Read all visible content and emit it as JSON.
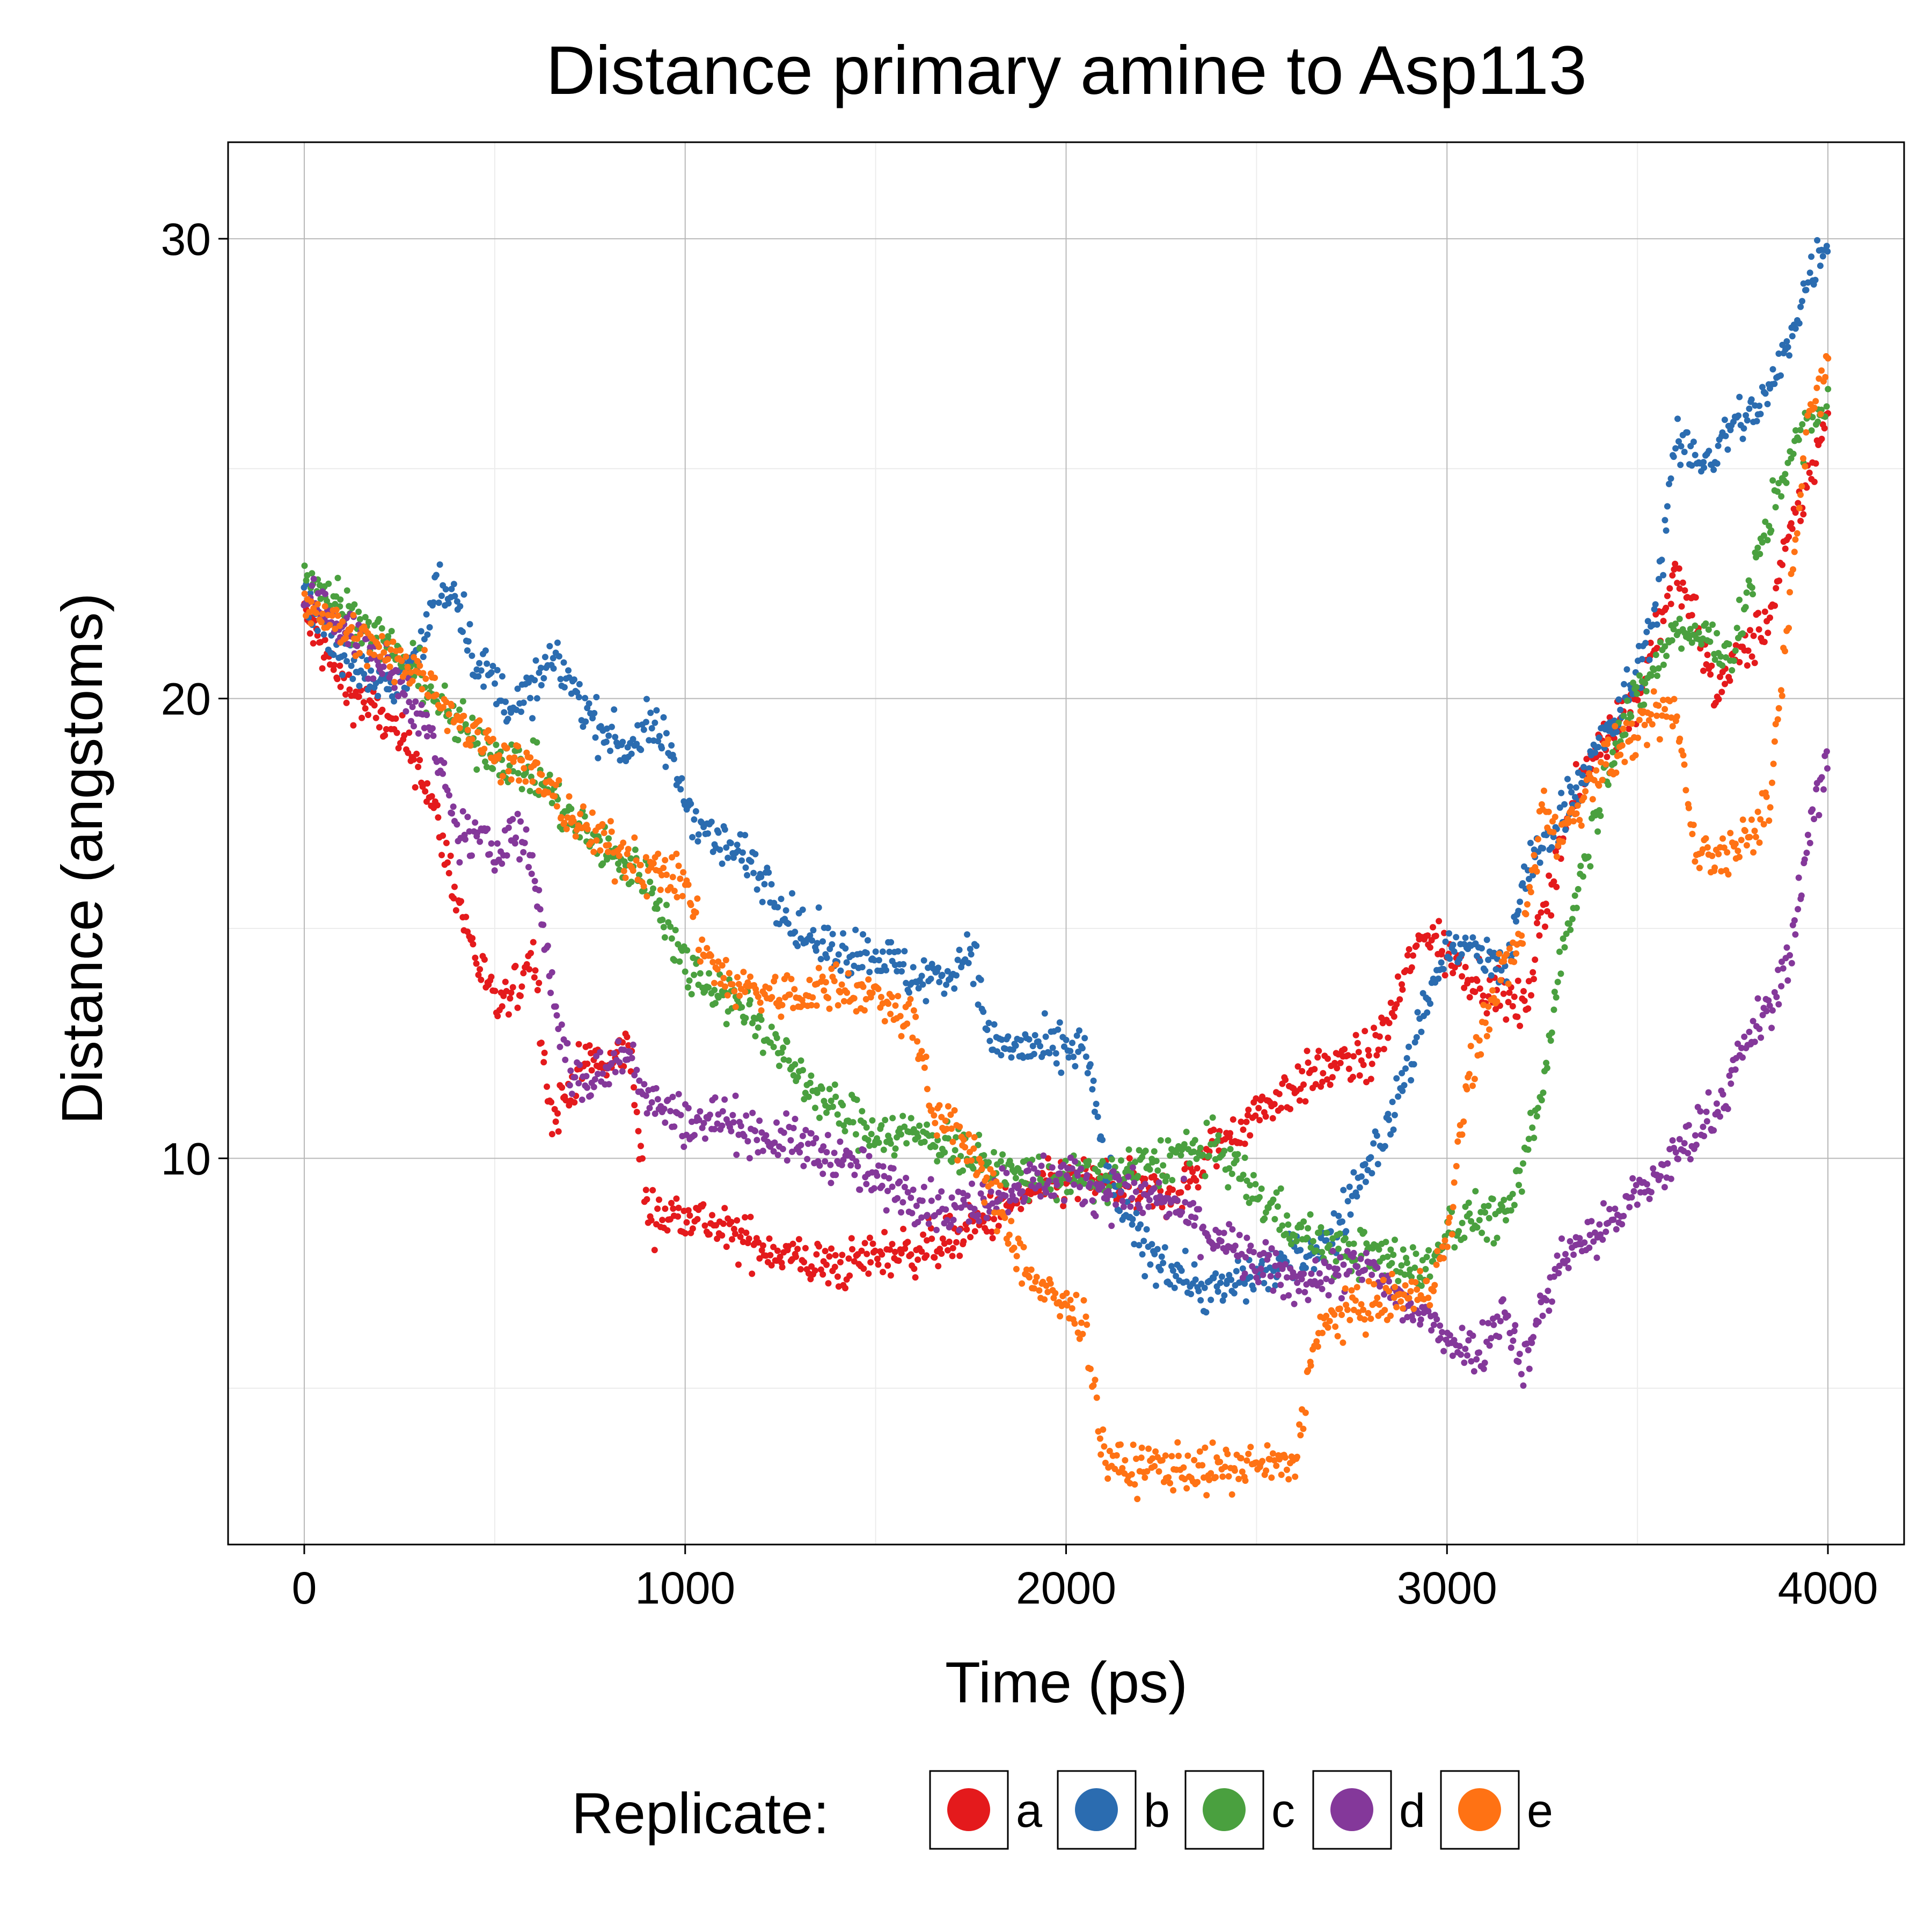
{
  "chart_data": {
    "type": "scatter",
    "title": "Distance primary amine to Asp113",
    "xlabel": "Time (ps)",
    "ylabel": "Distance (angstoms)",
    "xlim": [
      -200,
      4200
    ],
    "ylim": [
      1.6,
      32.1
    ],
    "xticks": [
      0,
      1000,
      2000,
      3000,
      4000
    ],
    "yticks": [
      10,
      20,
      30
    ],
    "grid": true,
    "legend": {
      "title": "Replicate:",
      "position": "bottom"
    },
    "series": [
      {
        "name": "a",
        "color": "#e41a1c",
        "x": [
          0,
          100,
          200,
          300,
          350,
          400,
          450,
          500,
          550,
          600,
          650,
          700,
          750,
          800,
          850,
          900,
          950,
          1000,
          1100,
          1200,
          1300,
          1400,
          1500,
          1600,
          1700,
          1800,
          1900,
          2000,
          2100,
          2200,
          2300,
          2400,
          2500,
          2600,
          2700,
          2800,
          2850,
          2900,
          2950,
          3000,
          3100,
          3200,
          3300,
          3400,
          3500,
          3550,
          3600,
          3650,
          3700,
          3750,
          3800,
          3850,
          3900,
          4000
        ],
        "y": [
          21.8,
          20.3,
          19.6,
          18.6,
          17.3,
          15.7,
          14.4,
          13.3,
          13.5,
          14.6,
          10.8,
          11.6,
          12.2,
          11.9,
          12.6,
          8.8,
          8.7,
          8.9,
          8.4,
          8.1,
          7.8,
          7.6,
          7.9,
          8.0,
          8.2,
          8.7,
          9.2,
          9.5,
          9.5,
          9.2,
          9.3,
          10.3,
          11.0,
          11.6,
          12.0,
          12.2,
          13.0,
          14.2,
          15.0,
          14.4,
          13.8,
          13.2,
          17.0,
          19.1,
          20.0,
          21.5,
          22.6,
          21.8,
          20.2,
          20.8,
          21.2,
          21.8,
          23.5,
          26.1
        ]
      },
      {
        "name": "b",
        "color": "#2b6cb0",
        "x": [
          0,
          100,
          200,
          300,
          350,
          400,
          450,
          500,
          550,
          600,
          650,
          700,
          750,
          800,
          850,
          900,
          950,
          1000,
          1050,
          1100,
          1150,
          1200,
          1250,
          1300,
          1400,
          1500,
          1550,
          1600,
          1700,
          1750,
          1800,
          1900,
          2000,
          2050,
          2100,
          2150,
          2200,
          2300,
          2350,
          2400,
          2500,
          2600,
          2700,
          2800,
          2850,
          2900,
          2950,
          3000,
          3050,
          3100,
          3150,
          3200,
          3300,
          3400,
          3450,
          3500,
          3550,
          3600,
          3650,
          3700,
          3750,
          3800,
          3850,
          3900,
          3950,
          4000
        ],
        "y": [
          22.3,
          21.0,
          20.2,
          20.8,
          22.5,
          22.3,
          20.8,
          20.3,
          19.8,
          20.2,
          20.8,
          20.4,
          19.6,
          19.2,
          18.9,
          19.4,
          19.0,
          17.8,
          17.2,
          16.8,
          16.6,
          16.2,
          15.6,
          14.9,
          14.5,
          14.5,
          14.2,
          13.9,
          14.0,
          14.7,
          12.5,
          12.4,
          12.3,
          12.4,
          9.9,
          8.8,
          8.1,
          7.5,
          7.2,
          7.1,
          7.5,
          7.8,
          8.3,
          10.0,
          10.8,
          12.0,
          13.6,
          14.5,
          14.6,
          14.4,
          13.9,
          16.0,
          17.5,
          19.0,
          19.6,
          20.6,
          22.0,
          25.5,
          25.3,
          25.2,
          26.0,
          26.2,
          26.7,
          27.8,
          29.2,
          30.0
        ]
      },
      {
        "name": "c",
        "color": "#4aa03f",
        "x": [
          0,
          100,
          200,
          300,
          400,
          500,
          600,
          650,
          700,
          800,
          900,
          1000,
          1050,
          1100,
          1150,
          1200,
          1250,
          1300,
          1400,
          1500,
          1600,
          1700,
          1800,
          1900,
          2000,
          2100,
          2200,
          2300,
          2400,
          2500,
          2600,
          2700,
          2800,
          2900,
          2950,
          3000,
          3100,
          3150,
          3200,
          3250,
          3300,
          3400,
          3450,
          3500,
          3600,
          3700,
          3750,
          3800,
          3850,
          3900,
          4000
        ],
        "y": [
          22.8,
          22.0,
          21.3,
          20.5,
          19.4,
          18.8,
          18.4,
          18.0,
          17.3,
          16.6,
          16.1,
          14.2,
          13.9,
          13.6,
          13.3,
          12.9,
          12.3,
          11.8,
          11.0,
          10.6,
          10.5,
          10.3,
          9.8,
          9.6,
          9.5,
          9.6,
          9.8,
          10.1,
          10.2,
          9.2,
          8.5,
          8.0,
          7.9,
          7.7,
          7.5,
          8.5,
          8.8,
          8.6,
          9.8,
          11.4,
          14.5,
          17.8,
          19.3,
          20.0,
          21.5,
          21.2,
          21.0,
          22.5,
          24.0,
          25.3,
          26.5
        ]
      },
      {
        "name": "d",
        "color": "#84389a",
        "x": [
          0,
          100,
          200,
          300,
          350,
          400,
          450,
          500,
          550,
          600,
          650,
          700,
          750,
          800,
          850,
          900,
          1000,
          1100,
          1200,
          1300,
          1400,
          1500,
          1600,
          1700,
          1800,
          1900,
          2000,
          2100,
          2200,
          2300,
          2400,
          2500,
          2600,
          2700,
          2800,
          2900,
          3000,
          3050,
          3100,
          3150,
          3200,
          3300,
          3400,
          3500,
          3600,
          3700,
          3750,
          3800,
          3850,
          3900,
          3950,
          4000
        ],
        "y": [
          22.3,
          21.6,
          20.8,
          19.8,
          18.6,
          17.1,
          17.0,
          16.6,
          17.2,
          16.4,
          13.7,
          11.8,
          11.6,
          12.0,
          12.5,
          11.3,
          10.8,
          10.9,
          10.5,
          10.3,
          10.0,
          9.5,
          9.2,
          8.8,
          9.2,
          9.5,
          9.6,
          9.3,
          9.2,
          8.9,
          8.2,
          7.7,
          7.3,
          7.5,
          7.6,
          6.7,
          6.2,
          5.8,
          6.0,
          6.8,
          5.5,
          7.9,
          8.4,
          9.2,
          10.0,
          11.0,
          11.8,
          12.8,
          13.2,
          14.5,
          17.0,
          18.7
        ]
      },
      {
        "name": "e",
        "color": "#ff7214",
        "x": [
          0,
          100,
          200,
          300,
          400,
          500,
          600,
          700,
          800,
          900,
          1000,
          1050,
          1100,
          1200,
          1300,
          1400,
          1500,
          1600,
          1650,
          1700,
          1750,
          1800,
          1850,
          1900,
          1950,
          2000,
          2050,
          2100,
          2150,
          2200,
          2300,
          2400,
          2500,
          2600,
          2650,
          2700,
          2800,
          2900,
          2950,
          3000,
          3050,
          3100,
          3150,
          3200,
          3250,
          3300,
          3400,
          3500,
          3550,
          3600,
          3650,
          3700,
          3750,
          3800,
          3850,
          3900,
          3950,
          4000
        ],
        "y": [
          22.2,
          21.5,
          21.0,
          20.7,
          19.6,
          18.9,
          18.4,
          17.4,
          16.8,
          16.3,
          16.0,
          14.5,
          13.9,
          13.6,
          13.5,
          13.8,
          13.5,
          13.0,
          10.9,
          10.8,
          10.0,
          9.4,
          8.4,
          7.5,
          7.0,
          6.8,
          6.4,
          3.5,
          3.2,
          3.3,
          3.3,
          3.2,
          3.3,
          3.3,
          6.0,
          6.5,
          6.8,
          7.0,
          7.2,
          8.0,
          11.5,
          13.0,
          14.2,
          14.8,
          17.6,
          17.0,
          18.5,
          19.2,
          19.5,
          19.8,
          16.8,
          16.5,
          16.8,
          17.2,
          17.8,
          22.2,
          26.0,
          27.5
        ]
      }
    ]
  }
}
